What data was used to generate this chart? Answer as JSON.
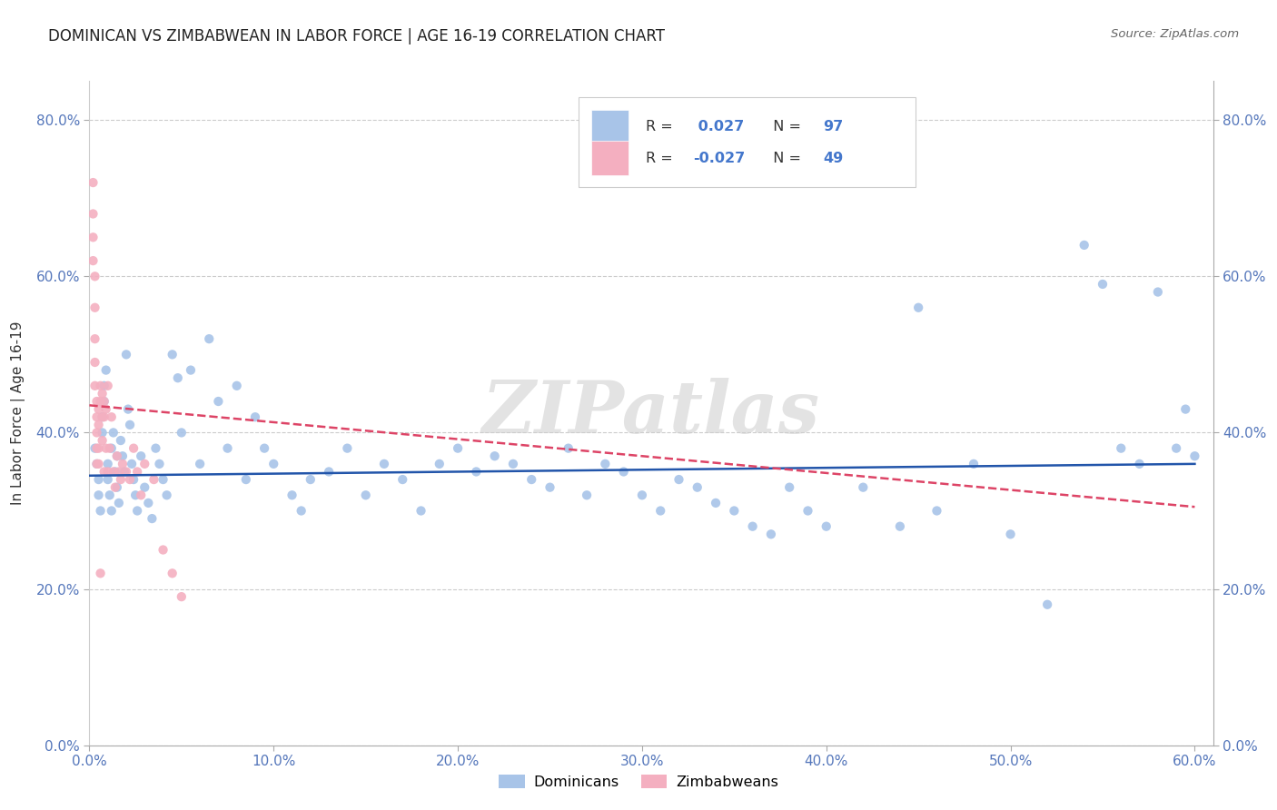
{
  "title": "DOMINICAN VS ZIMBABWEAN IN LABOR FORCE | AGE 16-19 CORRELATION CHART",
  "source": "Source: ZipAtlas.com",
  "ylabel": "In Labor Force | Age 16-19",
  "xlim": [
    0.0,
    0.61
  ],
  "ylim": [
    0.0,
    0.85
  ],
  "xticks": [
    0.0,
    0.1,
    0.2,
    0.3,
    0.4,
    0.5,
    0.6
  ],
  "yticks": [
    0.0,
    0.2,
    0.4,
    0.6,
    0.8
  ],
  "legend_blue_r": " 0.027",
  "legend_blue_n": "97",
  "legend_pink_r": "-0.027",
  "legend_pink_n": "49",
  "blue_color": "#a8c4e8",
  "pink_color": "#f4afc0",
  "blue_line_color": "#2255aa",
  "pink_line_color": "#dd4466",
  "grid_color": "#cccccc",
  "watermark": "ZIPatlas",
  "blue_line_x0": 0.0,
  "blue_line_x1": 0.6,
  "blue_line_y0": 0.345,
  "blue_line_y1": 0.36,
  "pink_line_x0": 0.0,
  "pink_line_x1": 0.6,
  "pink_line_y0": 0.435,
  "pink_line_y1": 0.305,
  "dominicans_x": [
    0.003,
    0.004,
    0.005,
    0.005,
    0.006,
    0.007,
    0.007,
    0.008,
    0.008,
    0.009,
    0.01,
    0.01,
    0.011,
    0.012,
    0.012,
    0.013,
    0.014,
    0.015,
    0.015,
    0.016,
    0.017,
    0.018,
    0.019,
    0.02,
    0.021,
    0.022,
    0.023,
    0.024,
    0.025,
    0.026,
    0.028,
    0.03,
    0.032,
    0.034,
    0.036,
    0.038,
    0.04,
    0.042,
    0.045,
    0.048,
    0.05,
    0.055,
    0.06,
    0.065,
    0.07,
    0.075,
    0.08,
    0.085,
    0.09,
    0.095,
    0.1,
    0.11,
    0.115,
    0.12,
    0.13,
    0.14,
    0.15,
    0.16,
    0.17,
    0.18,
    0.19,
    0.2,
    0.21,
    0.22,
    0.23,
    0.24,
    0.25,
    0.26,
    0.27,
    0.28,
    0.29,
    0.3,
    0.31,
    0.32,
    0.33,
    0.34,
    0.35,
    0.36,
    0.37,
    0.38,
    0.39,
    0.4,
    0.42,
    0.44,
    0.45,
    0.46,
    0.48,
    0.5,
    0.52,
    0.54,
    0.55,
    0.56,
    0.57,
    0.58,
    0.59,
    0.595,
    0.6
  ],
  "dominicans_y": [
    0.38,
    0.36,
    0.34,
    0.32,
    0.3,
    0.42,
    0.4,
    0.44,
    0.46,
    0.48,
    0.36,
    0.34,
    0.32,
    0.3,
    0.38,
    0.4,
    0.35,
    0.33,
    0.37,
    0.31,
    0.39,
    0.37,
    0.35,
    0.5,
    0.43,
    0.41,
    0.36,
    0.34,
    0.32,
    0.3,
    0.37,
    0.33,
    0.31,
    0.29,
    0.38,
    0.36,
    0.34,
    0.32,
    0.5,
    0.47,
    0.4,
    0.48,
    0.36,
    0.52,
    0.44,
    0.38,
    0.46,
    0.34,
    0.42,
    0.38,
    0.36,
    0.32,
    0.3,
    0.34,
    0.35,
    0.38,
    0.32,
    0.36,
    0.34,
    0.3,
    0.36,
    0.38,
    0.35,
    0.37,
    0.36,
    0.34,
    0.33,
    0.38,
    0.32,
    0.36,
    0.35,
    0.32,
    0.3,
    0.34,
    0.33,
    0.31,
    0.3,
    0.28,
    0.27,
    0.33,
    0.3,
    0.28,
    0.33,
    0.28,
    0.56,
    0.3,
    0.36,
    0.27,
    0.18,
    0.64,
    0.59,
    0.38,
    0.36,
    0.58,
    0.38,
    0.43,
    0.37
  ],
  "zimbabweans_x": [
    0.002,
    0.002,
    0.002,
    0.002,
    0.003,
    0.003,
    0.003,
    0.003,
    0.003,
    0.004,
    0.004,
    0.004,
    0.004,
    0.004,
    0.005,
    0.005,
    0.005,
    0.005,
    0.006,
    0.006,
    0.006,
    0.007,
    0.007,
    0.007,
    0.008,
    0.008,
    0.008,
    0.009,
    0.009,
    0.01,
    0.01,
    0.011,
    0.012,
    0.013,
    0.014,
    0.015,
    0.016,
    0.017,
    0.018,
    0.02,
    0.022,
    0.024,
    0.026,
    0.028,
    0.03,
    0.035,
    0.04,
    0.045,
    0.05
  ],
  "zimbabweans_y": [
    0.72,
    0.68,
    0.65,
    0.62,
    0.6,
    0.56,
    0.52,
    0.49,
    0.46,
    0.44,
    0.42,
    0.4,
    0.38,
    0.36,
    0.43,
    0.41,
    0.38,
    0.36,
    0.46,
    0.44,
    0.22,
    0.45,
    0.42,
    0.39,
    0.44,
    0.42,
    0.35,
    0.43,
    0.38,
    0.46,
    0.35,
    0.38,
    0.42,
    0.35,
    0.33,
    0.37,
    0.35,
    0.34,
    0.36,
    0.35,
    0.34,
    0.38,
    0.35,
    0.32,
    0.36,
    0.34,
    0.25,
    0.22,
    0.19
  ]
}
